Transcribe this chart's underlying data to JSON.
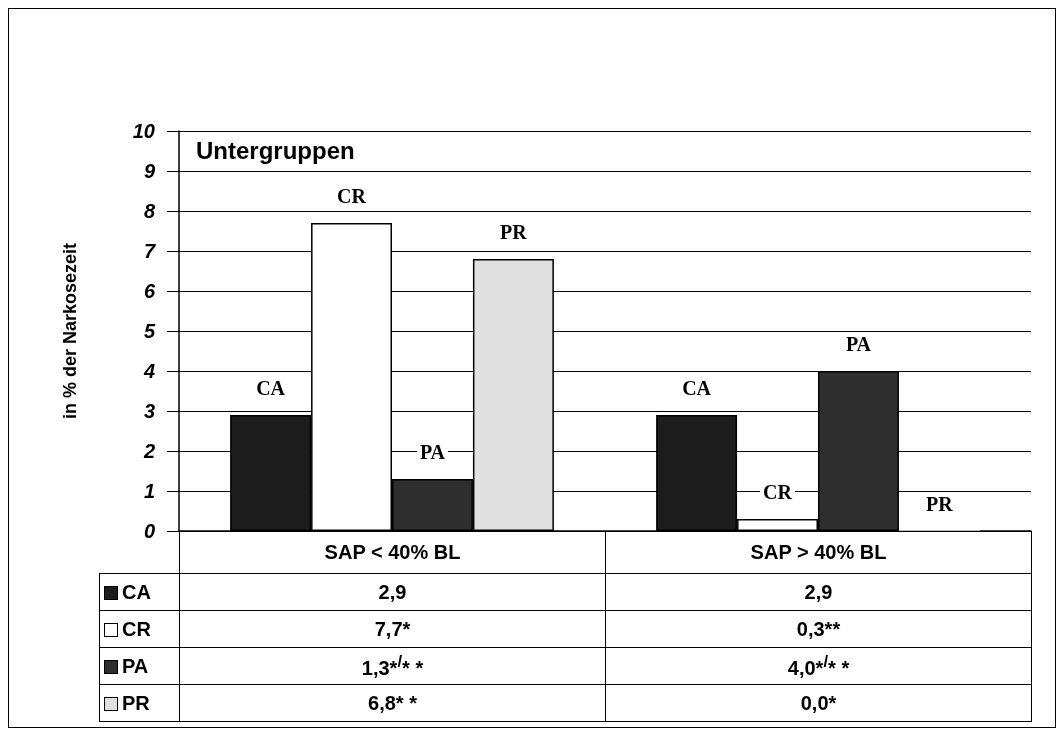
{
  "chart_data": {
    "type": "bar",
    "title": "Untergruppen",
    "ylabel": "in % der Narkosezeit",
    "categories": [
      "SAP < 40% BL",
      "SAP > 40% BL"
    ],
    "series": [
      {
        "name": "CA",
        "color": "#1c1c1c",
        "values": [
          2.9,
          2.9
        ],
        "value_labels": [
          "2,9",
          "2,9"
        ]
      },
      {
        "name": "CR",
        "color": "#ffffff",
        "values": [
          7.7,
          0.3
        ],
        "value_labels": [
          "7,7*",
          "0,3**"
        ]
      },
      {
        "name": "PA",
        "color": "#2e2e2e",
        "values": [
          1.3,
          4.0
        ],
        "value_labels": [
          "1,3*$^{/}$* *",
          "4,0*$^{/}$* *"
        ]
      },
      {
        "name": "PR",
        "color": "#e0e0e0",
        "values": [
          6.8,
          0.0
        ],
        "value_labels": [
          "6,8* *",
          "0,0*"
        ]
      }
    ],
    "ylim": [
      0,
      10
    ],
    "yticks": [
      0,
      1,
      2,
      3,
      4,
      5,
      6,
      7,
      8,
      9,
      10
    ],
    "grid": "y",
    "legend": "bottom"
  }
}
